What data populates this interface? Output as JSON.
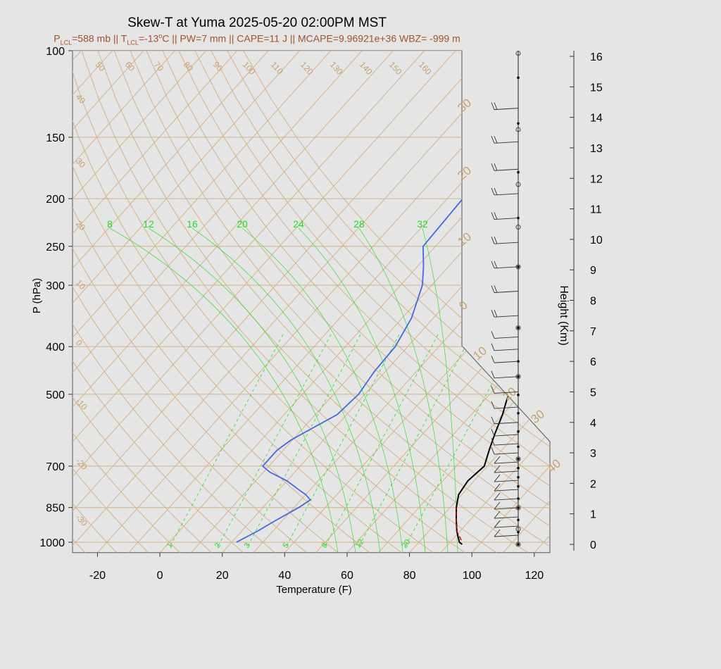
{
  "title": "Skew-T at Yuma 2025-05-20 02:00PM MST",
  "subtitle": {
    "plcl_prefix": "P",
    "plcl_sub": "LCL",
    "plcl_rest": "=588 mb || T",
    "tlcl_sub": "LCL",
    "tlcl_rest": "=-13",
    "deg_sup": "o",
    "rest": "C || PW=7 mm || CAPE=11 J || MCAPE=9.96921e+36 WBZ= -999 m"
  },
  "colors": {
    "background": "#e5e5e5",
    "isotherm": "#d4b48c",
    "isotherm_label": "#c8a070",
    "mixing_ratio": "#22dd22",
    "temperature": "#000000",
    "dewpoint": "#4169e1",
    "parcel": "#cc0000",
    "title_sub": "#a0522d"
  },
  "chart_data": {
    "type": "line",
    "title": "Skew-T at Yuma 2025-05-20 02:00PM MST",
    "xlabel": "Temperature (F)",
    "ylabel": "P (hPa)",
    "y2label": "Height (Km)",
    "xlim": [
      -28,
      125
    ],
    "ylim": [
      1050,
      100
    ],
    "y_scale": "log",
    "x_ticks": [
      -20,
      0,
      20,
      40,
      60,
      80,
      100,
      120
    ],
    "p_ticks": [
      100,
      150,
      200,
      250,
      300,
      400,
      500,
      700,
      850,
      1000
    ],
    "height_ticks": [
      0,
      1,
      2,
      3,
      4,
      5,
      6,
      7,
      8,
      9,
      10,
      11,
      12,
      13,
      14,
      15,
      16
    ],
    "isotherm_labels_top": [
      50,
      60,
      70,
      80,
      90,
      100,
      110,
      120,
      130,
      140,
      150,
      160
    ],
    "isotherm_labels_left": [
      40,
      30,
      20,
      10,
      0,
      -10,
      -20,
      -30
    ],
    "isotherm_labels_right": [
      30,
      20,
      10,
      0,
      10,
      20,
      30,
      40
    ],
    "mixing_ratio_top_labels": [
      8,
      12,
      16,
      20,
      24,
      28,
      32
    ],
    "mixing_ratio_bottom_labels": [
      1,
      2,
      3,
      5,
      8,
      12,
      20
    ],
    "series": [
      {
        "key": "temperature",
        "p": [
          1010,
          1000,
          950,
          900,
          850,
          800,
          750,
          700,
          650,
          600,
          550,
          500,
          450,
          400,
          350,
          300,
          250,
          200,
          175,
          150,
          130,
          115,
          100
        ],
        "t": [
          94.5,
          93,
          89,
          85.5,
          82,
          79,
          78,
          79,
          76,
          73,
          70,
          66,
          59,
          51,
          43,
          35,
          26,
          15,
          15,
          19.5,
          27,
          38,
          57
        ]
      },
      {
        "key": "dewpoint",
        "p": [
          1000,
          950,
          900,
          850,
          820,
          800,
          780,
          750,
          720,
          700,
          650,
          620,
          600,
          550,
          500,
          450,
          400,
          350,
          300,
          275,
          250,
          200,
          150,
          130,
          115,
          100
        ],
        "t": [
          21.5,
          25,
          28,
          31.5,
          33,
          30,
          26,
          20,
          12,
          8,
          8,
          9.5,
          11.5,
          17,
          18,
          16.5,
          16,
          13,
          7,
          2,
          -4,
          -5,
          -9,
          -11,
          -2,
          10
        ]
      },
      {
        "key": "parcel",
        "p": [
          990,
          950,
          900,
          850
        ],
        "t": [
          93,
          89,
          85.5,
          82
        ]
      }
    ],
    "wind_barbs": [
      {
        "z": 0.05,
        "u": 0
      },
      {
        "z": 0.3,
        "u": 1
      },
      {
        "z": 0.6,
        "u": 1
      },
      {
        "z": 0.9,
        "u": 1
      },
      {
        "z": 1.2,
        "u": 1
      },
      {
        "z": 1.5,
        "u": 1
      },
      {
        "z": 1.8,
        "u": 1
      },
      {
        "z": 2.1,
        "u": 1
      },
      {
        "z": 2.4,
        "u": 1
      },
      {
        "z": 2.7,
        "u": 1
      },
      {
        "z": 3.0,
        "u": 2
      },
      {
        "z": 3.3,
        "u": 2
      },
      {
        "z": 3.6,
        "u": 2
      },
      {
        "z": 4.0,
        "u": 2
      },
      {
        "z": 4.5,
        "u": 2
      },
      {
        "z": 5.0,
        "u": 2
      },
      {
        "z": 5.5,
        "u": 2
      },
      {
        "z": 6.0,
        "u": 2
      },
      {
        "z": 6.4,
        "u": 2
      },
      {
        "z": 6.8,
        "u": 2
      },
      {
        "z": 7.5,
        "u": 3
      },
      {
        "z": 8.3,
        "u": 3
      },
      {
        "z": 9.1,
        "u": 3
      },
      {
        "z": 9.9,
        "u": 3
      },
      {
        "z": 10.7,
        "u": 3
      },
      {
        "z": 11.5,
        "u": 3
      },
      {
        "z": 12.3,
        "u": 3
      },
      {
        "z": 13.2,
        "u": 3
      },
      {
        "z": 14.3,
        "u": 3
      }
    ],
    "markers_filled_km": [
      0.0,
      0.4,
      0.8,
      1.2,
      1.5,
      1.9,
      2.2,
      2.5,
      2.8,
      3.2,
      3.7,
      4.3,
      4.9,
      5.5,
      6.0,
      7.1,
      9.1,
      10.7,
      12.2,
      13.8,
      15.3
    ],
    "markers_open_km": [
      0.0,
      0.5,
      1.2,
      2.8,
      5.5,
      7.1,
      9.1,
      10.4,
      11.8,
      13.6,
      16.1
    ]
  }
}
